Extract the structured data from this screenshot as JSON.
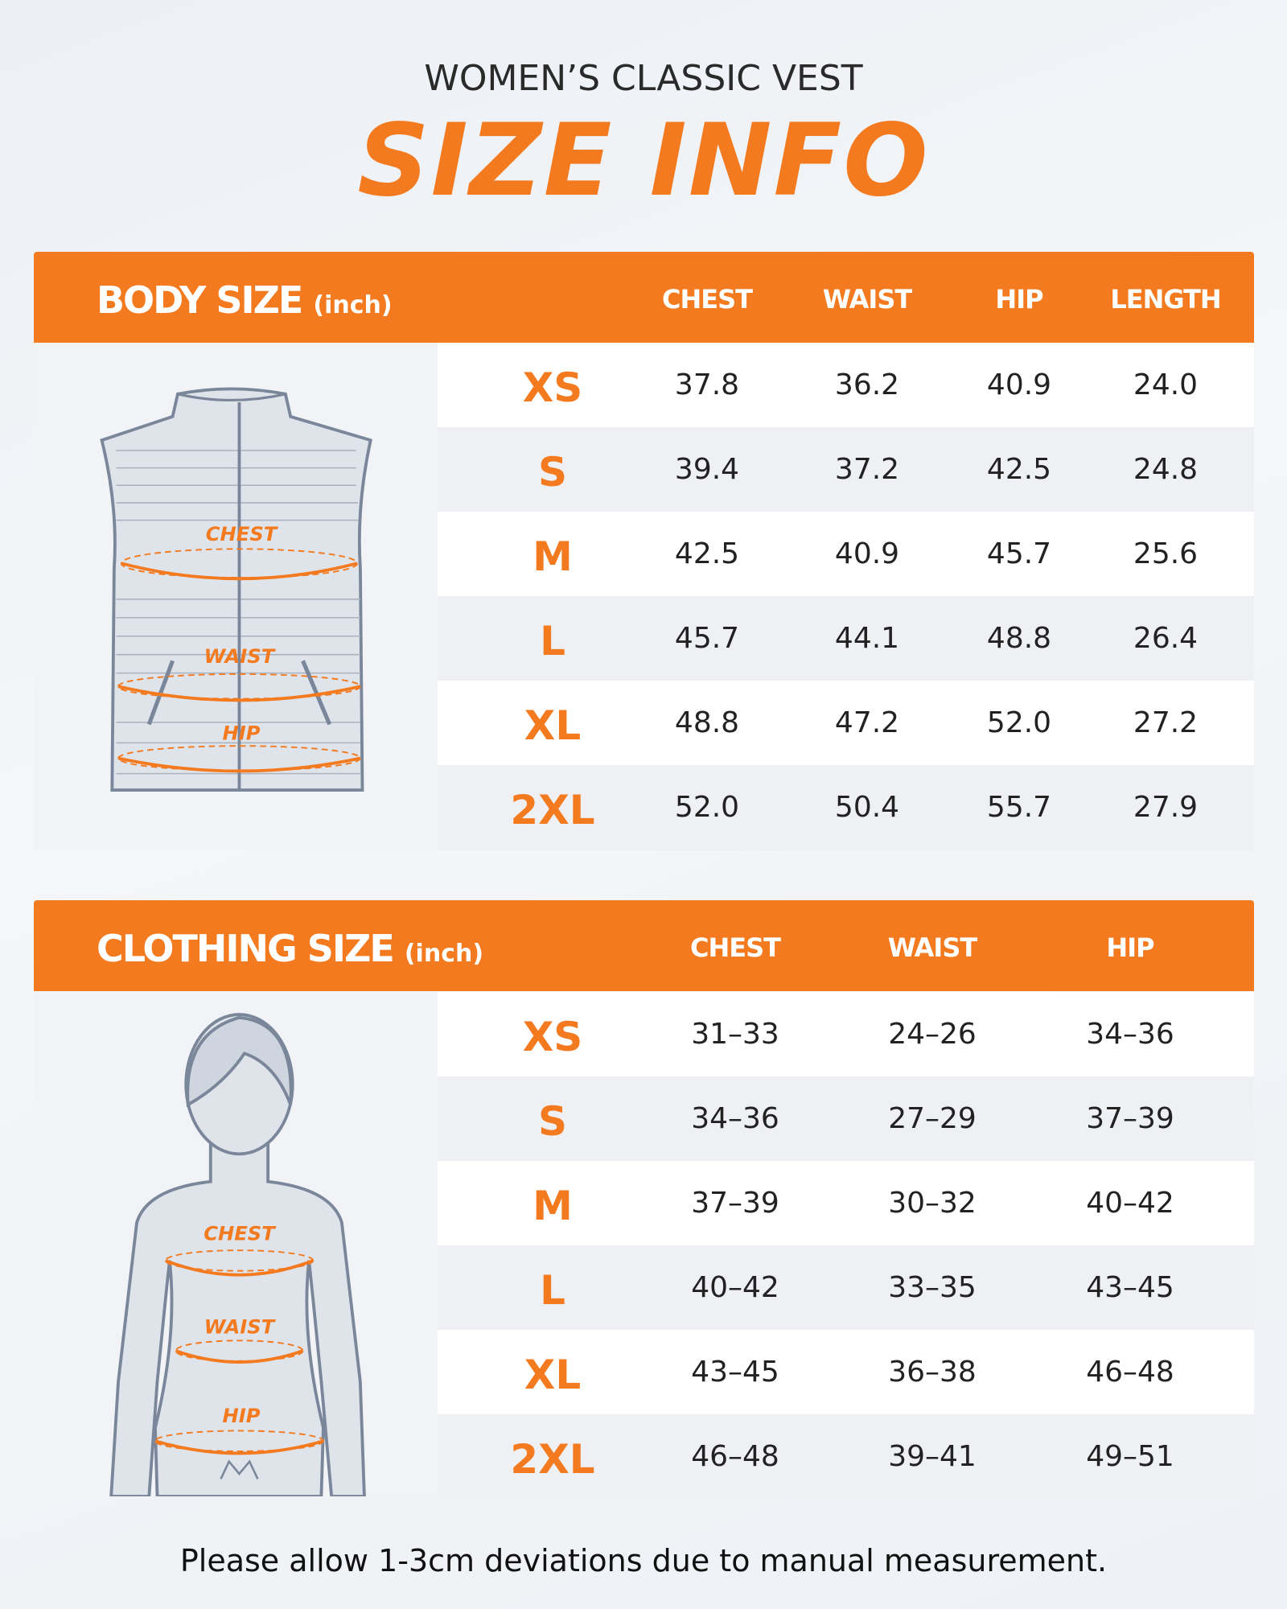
{
  "header": {
    "subtitle": "WOMEN’S CLASSIC VEST",
    "title": "SIZE INFO"
  },
  "body_size": {
    "title": "BODY SIZE",
    "unit": "(inch)",
    "columns": [
      "CHEST",
      "WAIST",
      "HIP",
      "LENGTH"
    ],
    "rows": [
      [
        "XS",
        "37.8",
        "36.2",
        "40.9",
        "24.0"
      ],
      [
        "S",
        "39.4",
        "37.2",
        "42.5",
        "24.8"
      ],
      [
        "M",
        "42.5",
        "40.9",
        "45.7",
        "25.6"
      ],
      [
        "L",
        "45.7",
        "44.1",
        "48.8",
        "26.4"
      ],
      [
        "XL",
        "48.8",
        "47.2",
        "52.0",
        "27.2"
      ],
      [
        "2XL",
        "52.0",
        "50.4",
        "55.7",
        "27.9"
      ]
    ],
    "figure_labels": [
      "CHEST",
      "WAIST",
      "HIP"
    ]
  },
  "clothing_size": {
    "title": "CLOTHING SIZE",
    "unit": "(inch)",
    "columns": [
      "CHEST",
      "WAIST",
      "HIP"
    ],
    "rows": [
      [
        "XS",
        "31–33",
        "24–26",
        "34–36"
      ],
      [
        "S",
        "34–36",
        "27–29",
        "37–39"
      ],
      [
        "M",
        "37–39",
        "30–32",
        "40–42"
      ],
      [
        "L",
        "40–42",
        "33–35",
        "43–45"
      ],
      [
        "XL",
        "43–45",
        "36–38",
        "46–48"
      ],
      [
        "2XL",
        "46–48",
        "39–41",
        "49–51"
      ]
    ],
    "figure_labels": [
      "CHEST",
      "WAIST",
      "HIP"
    ]
  },
  "footnote": "Please allow 1-3cm deviations due to manual measurement."
}
